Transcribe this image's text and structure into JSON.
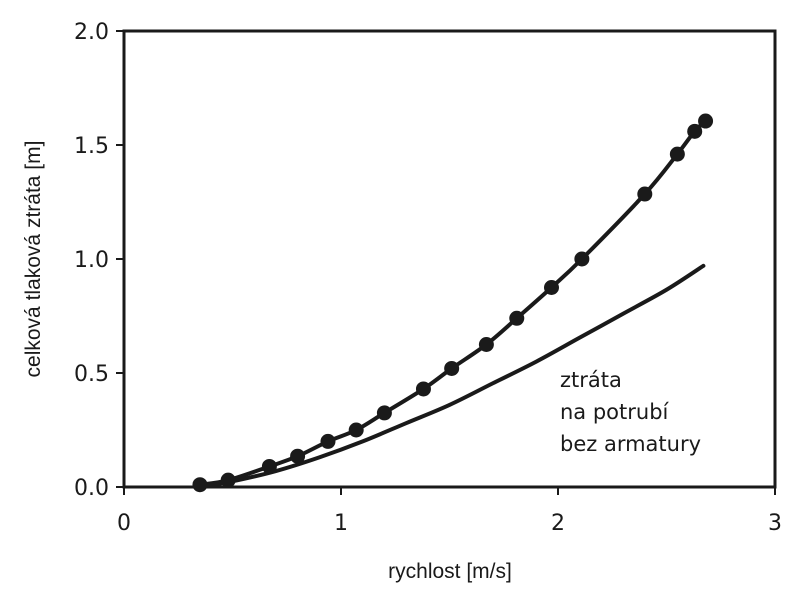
{
  "chart_data": {
    "type": "line",
    "title": "",
    "xlabel": "rychlost [m/s]",
    "ylabel": "celková tlaková ztráta [m]",
    "xlim": [
      0,
      3
    ],
    "ylim": [
      0,
      2
    ],
    "xticks": [
      0,
      1,
      2,
      3
    ],
    "xtick_labels": [
      "0",
      "1",
      "2",
      "3"
    ],
    "yticks": [
      0,
      0.5,
      1,
      1.5,
      2
    ],
    "ytick_labels": [
      "0.0",
      "0.5",
      "1.0",
      "1.5",
      "2.0"
    ],
    "grid": false,
    "legend": "none",
    "series": [
      {
        "style": "line-with-markers",
        "color": "#1a1a1a",
        "x": [
          0.35,
          0.48,
          0.67,
          0.8,
          0.94,
          1.07,
          1.2,
          1.38,
          1.51,
          1.67,
          1.81,
          1.97,
          2.11,
          2.4,
          2.55,
          2.63,
          2.68
        ],
        "y": [
          0.01,
          0.03,
          0.09,
          0.135,
          0.2,
          0.25,
          0.325,
          0.43,
          0.52,
          0.625,
          0.74,
          0.875,
          1.0,
          1.285,
          1.46,
          1.56,
          1.605
        ]
      },
      {
        "name": "ztráta na potrubí bez armatury",
        "style": "line",
        "color": "#1a1a1a",
        "x": [
          0.35,
          0.5,
          0.7,
          0.9,
          1.1,
          1.3,
          1.5,
          1.7,
          1.9,
          2.1,
          2.3,
          2.5,
          2.67
        ],
        "y": [
          0.0,
          0.025,
          0.07,
          0.13,
          0.2,
          0.28,
          0.36,
          0.455,
          0.55,
          0.655,
          0.76,
          0.865,
          0.97
        ]
      }
    ],
    "annotation": {
      "lines": [
        "ztráta",
        "na potrubí",
        "bez armatury"
      ]
    }
  }
}
